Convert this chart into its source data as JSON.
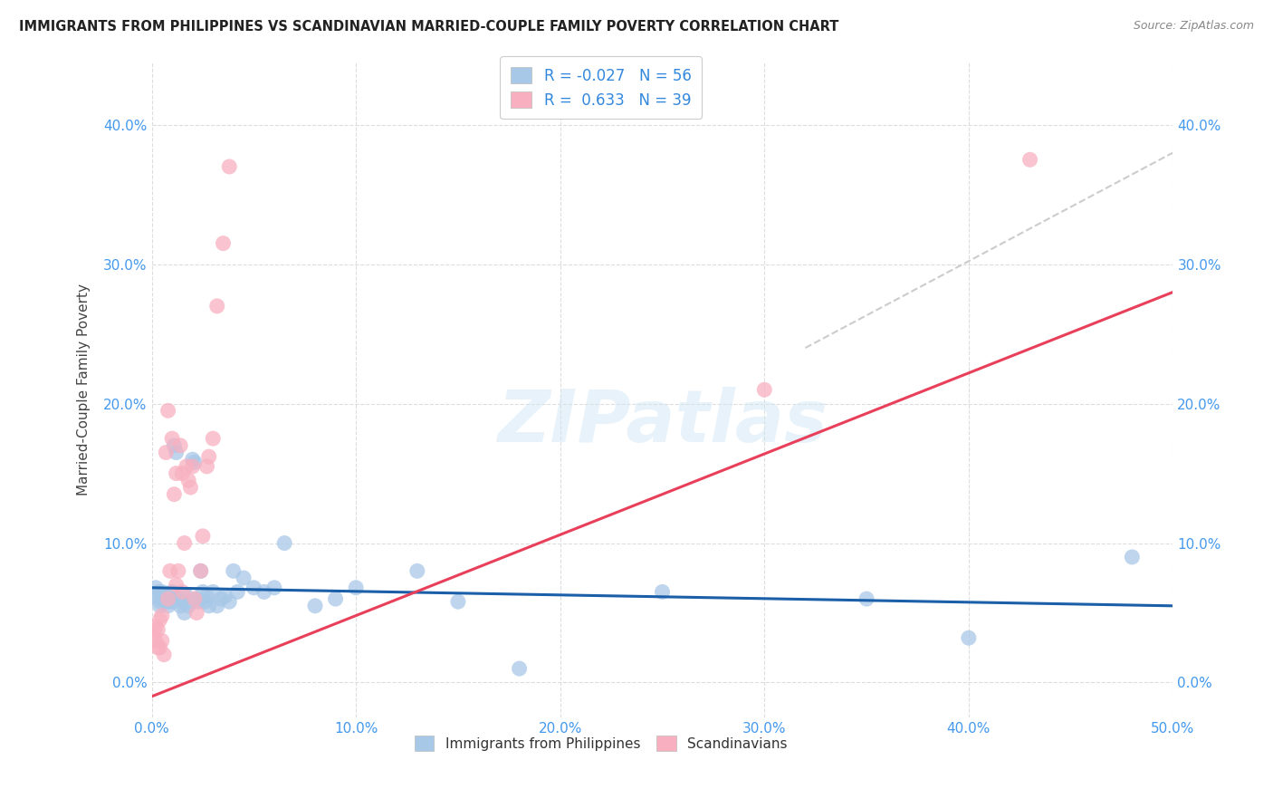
{
  "title": "IMMIGRANTS FROM PHILIPPINES VS SCANDINAVIAN MARRIED-COUPLE FAMILY POVERTY CORRELATION CHART",
  "source": "Source: ZipAtlas.com",
  "ylabel": "Married-Couple Family Poverty",
  "xlim": [
    0.0,
    0.5
  ],
  "ylim": [
    -0.025,
    0.445
  ],
  "xticks": [
    0.0,
    0.1,
    0.2,
    0.3,
    0.4,
    0.5
  ],
  "xticklabels": [
    "0.0%",
    "10.0%",
    "20.0%",
    "30.0%",
    "40.0%",
    "50.0%"
  ],
  "yticks": [
    0.0,
    0.1,
    0.2,
    0.3,
    0.4
  ],
  "yticklabels": [
    "0.0%",
    "10.0%",
    "20.0%",
    "30.0%",
    "40.0%"
  ],
  "blue_color": "#a8c8e8",
  "pink_color": "#f8b0c0",
  "blue_line_color": "#1a5fa8",
  "pink_line_color": "#e8405a",
  "dashed_line_color": "#cccccc",
  "background_color": "#ffffff",
  "watermark": "ZIPatlas",
  "blue_R": -0.027,
  "pink_R": 0.633,
  "blue_N": 56,
  "pink_N": 39,
  "blue_points": [
    [
      0.001,
      0.062
    ],
    [
      0.002,
      0.068
    ],
    [
      0.003,
      0.065
    ],
    [
      0.004,
      0.058
    ],
    [
      0.004,
      0.055
    ],
    [
      0.005,
      0.06
    ],
    [
      0.005,
      0.065
    ],
    [
      0.006,
      0.063
    ],
    [
      0.007,
      0.058
    ],
    [
      0.007,
      0.06
    ],
    [
      0.008,
      0.055
    ],
    [
      0.008,
      0.062
    ],
    [
      0.009,
      0.058
    ],
    [
      0.01,
      0.06
    ],
    [
      0.01,
      0.065
    ],
    [
      0.011,
      0.058
    ],
    [
      0.011,
      0.17
    ],
    [
      0.012,
      0.165
    ],
    [
      0.013,
      0.06
    ],
    [
      0.014,
      0.055
    ],
    [
      0.015,
      0.058
    ],
    [
      0.016,
      0.05
    ],
    [
      0.017,
      0.062
    ],
    [
      0.018,
      0.055
    ],
    [
      0.019,
      0.058
    ],
    [
      0.02,
      0.16
    ],
    [
      0.021,
      0.158
    ],
    [
      0.022,
      0.06
    ],
    [
      0.023,
      0.058
    ],
    [
      0.024,
      0.08
    ],
    [
      0.025,
      0.065
    ],
    [
      0.026,
      0.058
    ],
    [
      0.027,
      0.062
    ],
    [
      0.028,
      0.055
    ],
    [
      0.03,
      0.065
    ],
    [
      0.032,
      0.055
    ],
    [
      0.034,
      0.06
    ],
    [
      0.036,
      0.062
    ],
    [
      0.038,
      0.058
    ],
    [
      0.04,
      0.08
    ],
    [
      0.042,
      0.065
    ],
    [
      0.045,
      0.075
    ],
    [
      0.05,
      0.068
    ],
    [
      0.055,
      0.065
    ],
    [
      0.06,
      0.068
    ],
    [
      0.065,
      0.1
    ],
    [
      0.08,
      0.055
    ],
    [
      0.09,
      0.06
    ],
    [
      0.1,
      0.068
    ],
    [
      0.13,
      0.08
    ],
    [
      0.15,
      0.058
    ],
    [
      0.18,
      0.01
    ],
    [
      0.25,
      0.065
    ],
    [
      0.35,
      0.06
    ],
    [
      0.4,
      0.032
    ],
    [
      0.48,
      0.09
    ]
  ],
  "pink_points": [
    [
      0.001,
      0.035
    ],
    [
      0.002,
      0.03
    ],
    [
      0.002,
      0.04
    ],
    [
      0.003,
      0.038
    ],
    [
      0.003,
      0.025
    ],
    [
      0.004,
      0.045
    ],
    [
      0.004,
      0.025
    ],
    [
      0.005,
      0.048
    ],
    [
      0.005,
      0.03
    ],
    [
      0.006,
      0.02
    ],
    [
      0.007,
      0.165
    ],
    [
      0.008,
      0.06
    ],
    [
      0.008,
      0.195
    ],
    [
      0.009,
      0.08
    ],
    [
      0.01,
      0.175
    ],
    [
      0.011,
      0.135
    ],
    [
      0.012,
      0.07
    ],
    [
      0.012,
      0.15
    ],
    [
      0.013,
      0.08
    ],
    [
      0.014,
      0.17
    ],
    [
      0.015,
      0.065
    ],
    [
      0.015,
      0.15
    ],
    [
      0.016,
      0.1
    ],
    [
      0.017,
      0.155
    ],
    [
      0.018,
      0.145
    ],
    [
      0.019,
      0.14
    ],
    [
      0.02,
      0.155
    ],
    [
      0.021,
      0.06
    ],
    [
      0.022,
      0.05
    ],
    [
      0.024,
      0.08
    ],
    [
      0.025,
      0.105
    ],
    [
      0.027,
      0.155
    ],
    [
      0.028,
      0.162
    ],
    [
      0.03,
      0.175
    ],
    [
      0.032,
      0.27
    ],
    [
      0.035,
      0.315
    ],
    [
      0.038,
      0.37
    ],
    [
      0.3,
      0.21
    ],
    [
      0.43,
      0.375
    ]
  ],
  "pink_line_x": [
    0.0,
    0.5
  ],
  "pink_line_y": [
    -0.01,
    0.28
  ],
  "blue_line_x": [
    0.0,
    0.5
  ],
  "blue_line_y": [
    0.068,
    0.055
  ],
  "dash_line_x": [
    0.32,
    0.5
  ],
  "dash_line_y": [
    0.24,
    0.38
  ]
}
